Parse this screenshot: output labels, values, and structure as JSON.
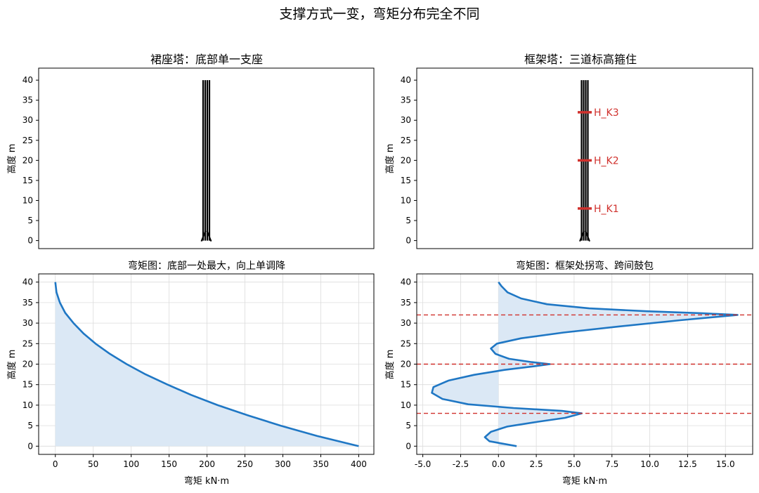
{
  "figure": {
    "suptitle": "支撑方式一变，弯矩分布完全不同"
  },
  "chart_data": [
    {
      "id": "skirt-tower",
      "type": "diagram",
      "title": "裙座塔：底部单一支座",
      "ylabel": "高度 m",
      "ylim": [
        -2,
        43
      ],
      "yticks": [
        0,
        5,
        10,
        15,
        20,
        25,
        30,
        35,
        40
      ],
      "column": {
        "bottom": 0,
        "top": 40,
        "support": "base"
      },
      "grid": false
    },
    {
      "id": "frame-tower",
      "type": "diagram",
      "title": "框架塔：三道标高箍住",
      "ylabel": "高度 m",
      "ylim": [
        -2,
        43
      ],
      "yticks": [
        0,
        5,
        10,
        15,
        20,
        25,
        30,
        35,
        40
      ],
      "column": {
        "bottom": 0,
        "top": 40,
        "support": "base"
      },
      "supports": [
        {
          "label": "H_K1",
          "height": 8
        },
        {
          "label": "H_K2",
          "height": 20
        },
        {
          "label": "H_K3",
          "height": 32
        }
      ],
      "support_color": "#d0312d",
      "grid": false
    },
    {
      "id": "skirt-moment",
      "type": "area",
      "title": "弯矩图：底部一处最大，向上单调降",
      "xlabel": "弯矩 kN·m",
      "ylabel": "高度 m",
      "xlim": [
        -22,
        420
      ],
      "ylim": [
        -2,
        42
      ],
      "xticks": [
        0,
        50,
        100,
        150,
        200,
        250,
        300,
        350,
        400
      ],
      "yticks": [
        0,
        5,
        10,
        15,
        20,
        25,
        30,
        35,
        40
      ],
      "grid": true,
      "series": [
        {
          "color": "#1f77c4",
          "fill": "#dbe8f5",
          "points": [
            [
              400,
              0
            ],
            [
              345,
              2.5
            ],
            [
              297,
              5
            ],
            [
              254,
              7.5
            ],
            [
              214,
              10
            ],
            [
              179,
              12.5
            ],
            [
              148,
              15
            ],
            [
              119,
              17.5
            ],
            [
              94,
              20
            ],
            [
              72,
              22.5
            ],
            [
              53,
              25
            ],
            [
              37,
              27.5
            ],
            [
              24,
              30
            ],
            [
              13,
              32.5
            ],
            [
              6,
              35
            ],
            [
              1.5,
              37.5
            ],
            [
              0,
              40
            ]
          ]
        }
      ]
    },
    {
      "id": "frame-moment",
      "type": "area",
      "title": "弯矩图：框架处拐弯、跨间鼓包",
      "xlabel": "弯矩 kN·m",
      "ylabel": "高度 m",
      "xlim": [
        -5.4,
        16.8
      ],
      "ylim": [
        -2,
        42
      ],
      "xticks": [
        -5.0,
        -2.5,
        0.0,
        2.5,
        5.0,
        7.5,
        10.0,
        12.5,
        15.0
      ],
      "xtick_labels": [
        "-5.0",
        "-2.5",
        "0.0",
        "2.5",
        "5.0",
        "7.5",
        "10.0",
        "12.5",
        "15.0"
      ],
      "yticks": [
        0,
        5,
        10,
        15,
        20,
        25,
        30,
        35,
        40
      ],
      "grid": true,
      "reference_lines": [
        8,
        20,
        32
      ],
      "reference_color": "#d0312d",
      "series": [
        {
          "color": "#1f77c4",
          "fill": "#dbe8f5",
          "points": [
            [
              1.2,
              0
            ],
            [
              -0.6,
              1.2
            ],
            [
              -0.9,
              2.2
            ],
            [
              -0.5,
              3.5
            ],
            [
              0.6,
              4.8
            ],
            [
              2.5,
              5.9
            ],
            [
              4.4,
              6.9
            ],
            [
              5.5,
              8
            ],
            [
              4.2,
              8.6
            ],
            [
              1.0,
              9.3
            ],
            [
              -2.0,
              10.2
            ],
            [
              -3.7,
              11.5
            ],
            [
              -4.4,
              13
            ],
            [
              -4.3,
              14.4
            ],
            [
              -3.3,
              16
            ],
            [
              -1.6,
              17.4
            ],
            [
              0.4,
              18.6
            ],
            [
              2.4,
              19.5
            ],
            [
              3.4,
              20
            ],
            [
              2.2,
              20.5
            ],
            [
              0.7,
              21.3
            ],
            [
              -0.2,
              22.5
            ],
            [
              -0.5,
              23.8
            ],
            [
              -0.1,
              25
            ],
            [
              1.5,
              26.3
            ],
            [
              4.3,
              27.7
            ],
            [
              8.0,
              29.2
            ],
            [
              12.0,
              30.7
            ],
            [
              15.8,
              32
            ],
            [
              13.5,
              32.4
            ],
            [
              9.8,
              32.9
            ],
            [
              6.0,
              33.6
            ],
            [
              3.2,
              34.6
            ],
            [
              1.5,
              36
            ],
            [
              0.6,
              37.5
            ],
            [
              0.2,
              39
            ],
            [
              0,
              40
            ]
          ]
        }
      ]
    }
  ]
}
